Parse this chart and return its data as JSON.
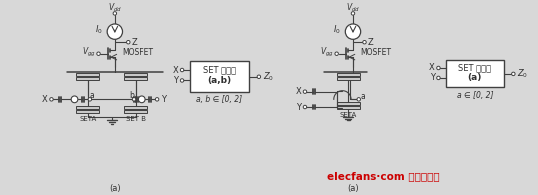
{
  "bg_color": "#d8d8d8",
  "line_color": "#404040",
  "text_color": "#303030",
  "gray_fill": "#c8c8c8",
  "white_fill": "#ffffff",
  "watermark_color": "#cc0000",
  "watermark_text": "elecfans·com 电子发烧友",
  "left_box_line1": "SET 并联门",
  "left_box_line2": "(a,b)",
  "left_box_sub": "a, b ∈ [0, 2]",
  "right_box_line1": "SET 求和门",
  "right_box_line2": "(a)",
  "right_box_sub": "a ∈ [0, 2]",
  "vdd": "$V_{dd}$",
  "io": "$I_0$",
  "z": "Z",
  "vgg": "$V_{gg}$",
  "mosfet": "MOSFET",
  "seta": "SETA",
  "setb": "SET B",
  "caption_a": "(a)",
  "x_label": "X",
  "y_label": "Y",
  "a_label": "a",
  "b_label": "b",
  "z0": "$Z_0$"
}
